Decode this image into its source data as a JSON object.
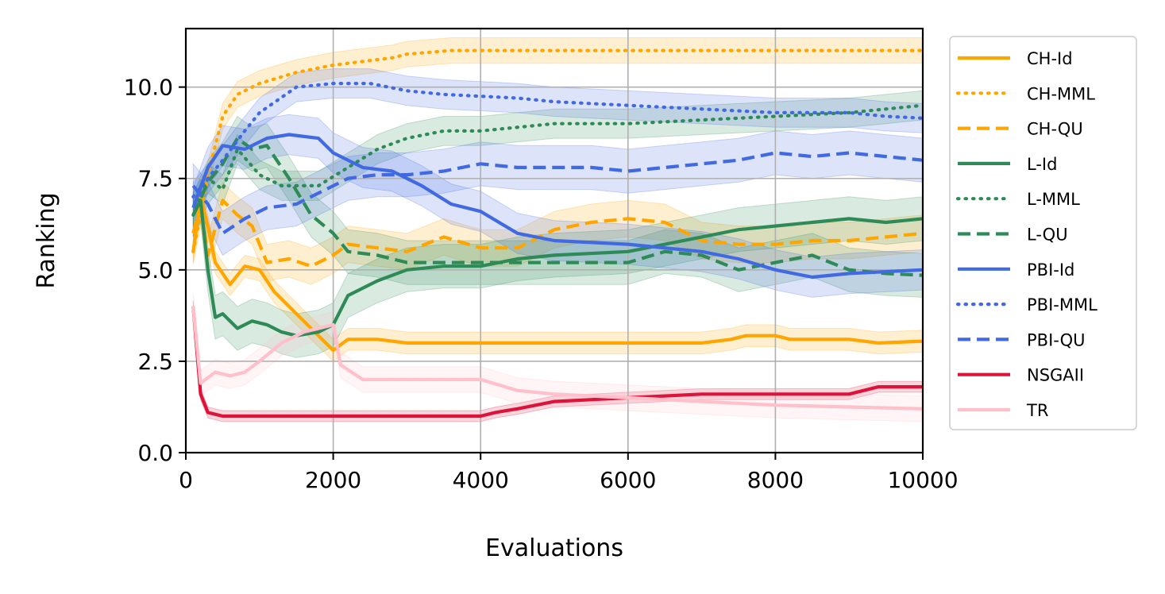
{
  "chart_data": {
    "type": "line",
    "xlabel": "Evaluations",
    "ylabel": "Ranking",
    "xlim": [
      0,
      10000
    ],
    "ylim": [
      0,
      11.6
    ],
    "xticks": [
      0,
      2000,
      4000,
      6000,
      8000,
      10000
    ],
    "xtick_labels": [
      "0",
      "2000",
      "4000",
      "6000",
      "8000",
      "10000"
    ],
    "yticks": [
      0,
      2.5,
      5,
      7.5,
      10
    ],
    "ytick_labels": [
      "0.0",
      "2.5",
      "5.0",
      "7.5",
      "10.0"
    ],
    "grid": true,
    "legend_position": "outside-right",
    "series": [
      {
        "name": "CH-Id",
        "color": "#FFA500",
        "dash": "solid",
        "band": 0.3,
        "points": [
          [
            100,
            5.5
          ],
          [
            200,
            7.0
          ],
          [
            300,
            6.2
          ],
          [
            400,
            5.2
          ],
          [
            600,
            4.6
          ],
          [
            800,
            5.1
          ],
          [
            1000,
            5.0
          ],
          [
            1200,
            4.4
          ],
          [
            1500,
            3.8
          ],
          [
            1800,
            3.2
          ],
          [
            2000,
            2.8
          ],
          [
            2200,
            3.1
          ],
          [
            2600,
            3.1
          ],
          [
            3000,
            3.0
          ],
          [
            5000,
            3.0
          ],
          [
            7000,
            3.0
          ],
          [
            7400,
            3.1
          ],
          [
            7600,
            3.2
          ],
          [
            8000,
            3.2
          ],
          [
            8200,
            3.1
          ],
          [
            9000,
            3.1
          ],
          [
            9400,
            3.0
          ],
          [
            10000,
            3.05
          ]
        ]
      },
      {
        "name": "CH-MML",
        "color": "#FFA500",
        "dash": "dot",
        "band": 0.35,
        "points": [
          [
            100,
            5.5
          ],
          [
            300,
            7.6
          ],
          [
            500,
            9.2
          ],
          [
            700,
            9.8
          ],
          [
            1000,
            10.1
          ],
          [
            1500,
            10.4
          ],
          [
            2000,
            10.6
          ],
          [
            2400,
            10.7
          ],
          [
            2800,
            10.8
          ],
          [
            3000,
            10.9
          ],
          [
            3600,
            11.0
          ],
          [
            10000,
            11.0
          ]
        ]
      },
      {
        "name": "CH-QU",
        "color": "#FFA500",
        "dash": "dash",
        "band": 0.5,
        "points": [
          [
            100,
            6.0
          ],
          [
            200,
            6.8
          ],
          [
            300,
            5.4
          ],
          [
            500,
            6.9
          ],
          [
            700,
            6.5
          ],
          [
            900,
            6.2
          ],
          [
            1100,
            5.2
          ],
          [
            1400,
            5.3
          ],
          [
            1700,
            5.1
          ],
          [
            2000,
            5.4
          ],
          [
            2200,
            5.7
          ],
          [
            2600,
            5.6
          ],
          [
            3000,
            5.5
          ],
          [
            3500,
            5.9
          ],
          [
            4000,
            5.6
          ],
          [
            4500,
            5.6
          ],
          [
            5000,
            6.1
          ],
          [
            5500,
            6.3
          ],
          [
            6000,
            6.4
          ],
          [
            6500,
            6.3
          ],
          [
            7000,
            5.8
          ],
          [
            7500,
            5.7
          ],
          [
            8000,
            5.7
          ],
          [
            8500,
            5.8
          ],
          [
            9000,
            5.8
          ],
          [
            9500,
            5.9
          ],
          [
            10000,
            6.0
          ]
        ]
      },
      {
        "name": "L-Id",
        "color": "#2E8B57",
        "dash": "solid",
        "band": 0.6,
        "points": [
          [
            100,
            6.5
          ],
          [
            200,
            6.9
          ],
          [
            300,
            5.0
          ],
          [
            400,
            3.7
          ],
          [
            500,
            3.8
          ],
          [
            700,
            3.4
          ],
          [
            900,
            3.6
          ],
          [
            1100,
            3.5
          ],
          [
            1300,
            3.3
          ],
          [
            1500,
            3.2
          ],
          [
            1800,
            3.3
          ],
          [
            2000,
            3.5
          ],
          [
            2200,
            4.3
          ],
          [
            2600,
            4.7
          ],
          [
            3000,
            5.0
          ],
          [
            3500,
            5.1
          ],
          [
            4000,
            5.1
          ],
          [
            4500,
            5.3
          ],
          [
            5000,
            5.4
          ],
          [
            6000,
            5.5
          ],
          [
            7000,
            5.9
          ],
          [
            7500,
            6.1
          ],
          [
            8000,
            6.2
          ],
          [
            8500,
            6.3
          ],
          [
            9000,
            6.4
          ],
          [
            9500,
            6.3
          ],
          [
            10000,
            6.4
          ]
        ]
      },
      {
        "name": "L-MML",
        "color": "#2E8B57",
        "dash": "dot",
        "band": 0.4,
        "points": [
          [
            100,
            6.5
          ],
          [
            300,
            7.5
          ],
          [
            500,
            7.2
          ],
          [
            700,
            8.3
          ],
          [
            1000,
            7.6
          ],
          [
            1300,
            7.3
          ],
          [
            1800,
            7.3
          ],
          [
            2200,
            7.8
          ],
          [
            2600,
            8.3
          ],
          [
            3000,
            8.6
          ],
          [
            3500,
            8.8
          ],
          [
            4000,
            8.8
          ],
          [
            5000,
            9.0
          ],
          [
            6000,
            9.0
          ],
          [
            7000,
            9.1
          ],
          [
            8000,
            9.2
          ],
          [
            9000,
            9.3
          ],
          [
            9500,
            9.4
          ],
          [
            10000,
            9.5
          ]
        ]
      },
      {
        "name": "L-QU",
        "color": "#2E8B57",
        "dash": "dash",
        "band": 0.6,
        "points": [
          [
            100,
            6.5
          ],
          [
            300,
            7.4
          ],
          [
            500,
            7.9
          ],
          [
            700,
            8.6
          ],
          [
            900,
            8.3
          ],
          [
            1100,
            8.4
          ],
          [
            1400,
            7.5
          ],
          [
            1700,
            6.5
          ],
          [
            2000,
            6.0
          ],
          [
            2200,
            5.5
          ],
          [
            2600,
            5.4
          ],
          [
            3000,
            5.2
          ],
          [
            4000,
            5.2
          ],
          [
            5000,
            5.2
          ],
          [
            6000,
            5.2
          ],
          [
            6500,
            5.5
          ],
          [
            7000,
            5.4
          ],
          [
            7500,
            5.0
          ],
          [
            8000,
            5.2
          ],
          [
            8500,
            5.4
          ],
          [
            9000,
            5.0
          ],
          [
            9500,
            4.9
          ],
          [
            10000,
            4.85
          ]
        ]
      },
      {
        "name": "PBI-Id",
        "color": "#4169E1",
        "dash": "solid",
        "band": 0.55,
        "points": [
          [
            100,
            6.7
          ],
          [
            300,
            7.8
          ],
          [
            500,
            8.4
          ],
          [
            800,
            8.3
          ],
          [
            1100,
            8.6
          ],
          [
            1400,
            8.7
          ],
          [
            1800,
            8.6
          ],
          [
            2000,
            8.2
          ],
          [
            2400,
            7.8
          ],
          [
            2800,
            7.7
          ],
          [
            3200,
            7.3
          ],
          [
            3600,
            6.8
          ],
          [
            4000,
            6.6
          ],
          [
            4500,
            6.0
          ],
          [
            5000,
            5.8
          ],
          [
            6000,
            5.7
          ],
          [
            7000,
            5.5
          ],
          [
            7500,
            5.3
          ],
          [
            8000,
            5.0
          ],
          [
            8500,
            4.8
          ],
          [
            9000,
            4.9
          ],
          [
            10000,
            5.0
          ]
        ]
      },
      {
        "name": "PBI-MML",
        "color": "#4169E1",
        "dash": "dot",
        "band": 0.4,
        "points": [
          [
            100,
            7.0
          ],
          [
            300,
            7.5
          ],
          [
            500,
            8.0
          ],
          [
            800,
            8.8
          ],
          [
            1000,
            9.3
          ],
          [
            1500,
            10.0
          ],
          [
            2000,
            10.1
          ],
          [
            2500,
            10.1
          ],
          [
            3000,
            9.9
          ],
          [
            3500,
            9.8
          ],
          [
            4500,
            9.7
          ],
          [
            5000,
            9.6
          ],
          [
            6000,
            9.5
          ],
          [
            7000,
            9.4
          ],
          [
            8000,
            9.3
          ],
          [
            9000,
            9.3
          ],
          [
            9500,
            9.2
          ],
          [
            10000,
            9.15
          ]
        ]
      },
      {
        "name": "PBI-QU",
        "color": "#4169E1",
        "dash": "dash",
        "band": 0.6,
        "points": [
          [
            100,
            7.3
          ],
          [
            300,
            6.8
          ],
          [
            500,
            6.0
          ],
          [
            800,
            6.4
          ],
          [
            1100,
            6.7
          ],
          [
            1500,
            6.8
          ],
          [
            1900,
            7.2
          ],
          [
            2200,
            7.5
          ],
          [
            2600,
            7.6
          ],
          [
            3000,
            7.6
          ],
          [
            3500,
            7.7
          ],
          [
            4000,
            7.9
          ],
          [
            4500,
            7.8
          ],
          [
            5000,
            7.8
          ],
          [
            5500,
            7.8
          ],
          [
            6000,
            7.7
          ],
          [
            6500,
            7.8
          ],
          [
            7000,
            7.9
          ],
          [
            7500,
            8.0
          ],
          [
            8000,
            8.2
          ],
          [
            8500,
            8.1
          ],
          [
            9000,
            8.2
          ],
          [
            9500,
            8.1
          ],
          [
            10000,
            8.0
          ]
        ]
      },
      {
        "name": "NSGAII",
        "color": "#DC143C",
        "dash": "solid",
        "band": 0.15,
        "points": [
          [
            100,
            4.0
          ],
          [
            150,
            2.8
          ],
          [
            200,
            1.6
          ],
          [
            300,
            1.1
          ],
          [
            500,
            1.0
          ],
          [
            1000,
            1.0
          ],
          [
            2000,
            1.0
          ],
          [
            3000,
            1.0
          ],
          [
            4000,
            1.0
          ],
          [
            4200,
            1.1
          ],
          [
            4500,
            1.2
          ],
          [
            5000,
            1.4
          ],
          [
            6000,
            1.5
          ],
          [
            7000,
            1.6
          ],
          [
            8000,
            1.6
          ],
          [
            9000,
            1.6
          ],
          [
            9400,
            1.8
          ],
          [
            10000,
            1.8
          ]
        ]
      },
      {
        "name": "TR",
        "color": "#FFC0CB",
        "dash": "solid",
        "band": 0.35,
        "points": [
          [
            100,
            4.0
          ],
          [
            200,
            1.9
          ],
          [
            400,
            2.2
          ],
          [
            600,
            2.1
          ],
          [
            800,
            2.2
          ],
          [
            1000,
            2.5
          ],
          [
            1300,
            3.0
          ],
          [
            1600,
            3.3
          ],
          [
            2000,
            3.5
          ],
          [
            2100,
            2.4
          ],
          [
            2400,
            2.0
          ],
          [
            3000,
            2.0
          ],
          [
            4000,
            2.0
          ],
          [
            4500,
            1.7
          ],
          [
            5000,
            1.6
          ],
          [
            6000,
            1.5
          ],
          [
            7000,
            1.4
          ],
          [
            8000,
            1.3
          ],
          [
            9000,
            1.25
          ],
          [
            10000,
            1.2
          ]
        ]
      }
    ]
  }
}
